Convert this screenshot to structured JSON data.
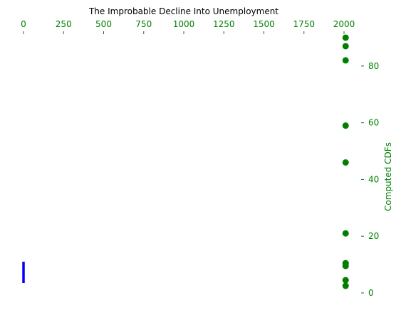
{
  "chart_data": {
    "type": "scatter",
    "title": "The Improbable Decline Into Unemployment",
    "x_axis": {
      "position": "top",
      "range": [
        0,
        2000
      ],
      "ticks": [
        0,
        250,
        500,
        750,
        1000,
        1250,
        1500,
        1750,
        2000
      ],
      "tick_labels": [
        "0",
        "250",
        "500",
        "750",
        "1000",
        "1250",
        "1500",
        "1750",
        "2000"
      ],
      "label": ""
    },
    "y_axis": {
      "position": "right",
      "range": [
        0,
        92
      ],
      "ticks": [
        0,
        20,
        40,
        60,
        80
      ],
      "tick_labels": [
        "0",
        "20",
        "40",
        "60",
        "80"
      ],
      "label": "Computed CDFs"
    },
    "grid": false,
    "series": [
      {
        "type": "scatter",
        "color": "#008000",
        "points": [
          {
            "x": 2010,
            "y": 90
          },
          {
            "x": 2010,
            "y": 87
          },
          {
            "x": 2010,
            "y": 82
          },
          {
            "x": 2010,
            "y": 59
          },
          {
            "x": 2010,
            "y": 46
          },
          {
            "x": 2010,
            "y": 21
          },
          {
            "x": 2010,
            "y": 10.5
          },
          {
            "x": 2010,
            "y": 9.5
          },
          {
            "x": 2010,
            "y": 4.5
          },
          {
            "x": 2010,
            "y": 2.5
          }
        ]
      },
      {
        "type": "line",
        "color": "#0000ff",
        "points": [
          {
            "x": 0,
            "y": 11
          },
          {
            "x": 0,
            "y": 3.5
          }
        ]
      }
    ],
    "colors": {
      "x_axis": "#008000",
      "y_axis": "#008000",
      "title": "#000000"
    }
  }
}
